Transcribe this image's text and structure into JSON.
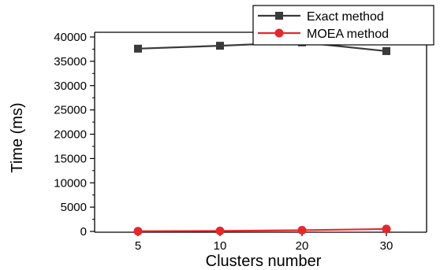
{
  "chart_data": {
    "type": "line",
    "title": "",
    "xlabel": "Clusters number",
    "ylabel": "Time (ms)",
    "categories": [
      "5",
      "10",
      "20",
      "30"
    ],
    "ylim": [
      0,
      40000
    ],
    "yticks": [
      "0",
      "5000",
      "10000",
      "15000",
      "20000",
      "25000",
      "30000",
      "35000",
      "40000"
    ],
    "legend_position": "top-right",
    "grid": false,
    "series": [
      {
        "name": "Exact method",
        "color": "#3a3a3a",
        "marker": "square",
        "values": [
          37600,
          38200,
          38900,
          37100
        ]
      },
      {
        "name": "MOEA method",
        "color": "#e8262a",
        "marker": "circle",
        "values": [
          50,
          100,
          250,
          500
        ]
      }
    ]
  }
}
